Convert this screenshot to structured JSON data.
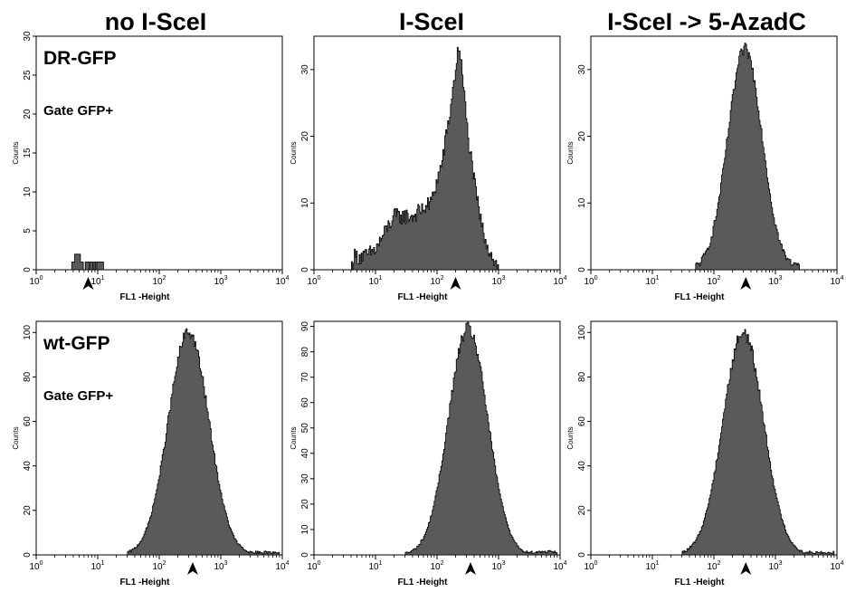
{
  "column_titles": [
    "no I-SceI",
    "I-SceI",
    "I-SceI -> 5-AzadC"
  ],
  "row_labels": [
    "DR-GFP",
    "wt-GFP"
  ],
  "gate_label": "Gate GFP+",
  "colors": {
    "fill": "#5a5a5a",
    "stroke": "#000000",
    "arrow": "#000000"
  },
  "chart_data": [
    {
      "type": "area",
      "row": 0,
      "col": 0,
      "title": "no I-SceI",
      "panel_label": "DR-GFP",
      "gate_label": "Gate GFP+",
      "xlabel": "FL1 -Height",
      "ylabel": "Counts",
      "xscale": "log",
      "xlim": [
        1,
        10000
      ],
      "ylim": [
        0,
        30
      ],
      "xticks": [
        "10^0",
        "10^1",
        "10^2",
        "10^3",
        "10^4"
      ],
      "yticks": [
        0,
        5,
        10,
        15,
        20,
        25,
        30
      ],
      "marker_x": 7,
      "distribution": {
        "kind": "sparse",
        "bins": [
          [
            4,
            1
          ],
          [
            4.5,
            2
          ],
          [
            5,
            2
          ],
          [
            5.5,
            1
          ],
          [
            6.5,
            1
          ],
          [
            7,
            1
          ],
          [
            8,
            1
          ],
          [
            9,
            1
          ],
          [
            10,
            1
          ],
          [
            11,
            1
          ],
          [
            12,
            1
          ]
        ]
      }
    },
    {
      "type": "area",
      "row": 0,
      "col": 1,
      "title": "I-SceI",
      "xlabel": "FL1 -Height",
      "ylabel": "Counts",
      "xscale": "log",
      "xlim": [
        1,
        10000
      ],
      "ylim": [
        0,
        35
      ],
      "xticks": [
        "10^0",
        "10^1",
        "10^2",
        "10^3",
        "10^4"
      ],
      "yticks": [
        0,
        10,
        20,
        30
      ],
      "marker_x": 200,
      "distribution": {
        "kind": "profile",
        "points": [
          [
            4,
            0
          ],
          [
            4.5,
            2
          ],
          [
            7,
            2
          ],
          [
            10,
            3
          ],
          [
            15,
            6
          ],
          [
            20,
            8
          ],
          [
            40,
            8
          ],
          [
            80,
            10
          ],
          [
            120,
            16
          ],
          [
            160,
            23
          ],
          [
            200,
            30
          ],
          [
            230,
            34
          ],
          [
            260,
            29
          ],
          [
            320,
            20
          ],
          [
            420,
            12
          ],
          [
            550,
            6
          ],
          [
            700,
            3
          ],
          [
            900,
            1
          ],
          [
            1000,
            0
          ]
        ]
      }
    },
    {
      "type": "area",
      "row": 0,
      "col": 2,
      "title": "I-SceI -> 5-AzadC",
      "xlabel": "FL1 -Height",
      "ylabel": "Counts",
      "xscale": "log",
      "xlim": [
        1,
        10000
      ],
      "ylim": [
        0,
        35
      ],
      "xticks": [
        "10^0",
        "10^1",
        "10^2",
        "10^3",
        "10^4"
      ],
      "yticks": [
        0,
        10,
        20,
        30
      ],
      "marker_x": 330,
      "distribution": {
        "kind": "lognormal",
        "peak": 33,
        "center": 320,
        "sigma": 0.28,
        "start": 50,
        "end": 2500
      }
    },
    {
      "type": "area",
      "row": 1,
      "col": 0,
      "panel_label": "wt-GFP",
      "gate_label": "Gate GFP+",
      "xlabel": "FL1 -Height",
      "ylabel": "Counts",
      "xscale": "log",
      "xlim": [
        1,
        10000
      ],
      "ylim": [
        0,
        105
      ],
      "xticks": [
        "10^0",
        "10^1",
        "10^2",
        "10^3",
        "10^4"
      ],
      "yticks": [
        0,
        20,
        40,
        60,
        80,
        100
      ],
      "marker_x": 350,
      "distribution": {
        "kind": "lognormal",
        "peak": 100,
        "center": 300,
        "sigma": 0.33,
        "start": 30,
        "end": 9000
      }
    },
    {
      "type": "area",
      "row": 1,
      "col": 1,
      "xlabel": "FL1 -Height",
      "ylabel": "Counts",
      "xscale": "log",
      "xlim": [
        1,
        10000
      ],
      "ylim": [
        0,
        92
      ],
      "xticks": [
        "10^0",
        "10^1",
        "10^2",
        "10^3",
        "10^4"
      ],
      "yticks": [
        0,
        10,
        20,
        30,
        40,
        50,
        60,
        70,
        80,
        90
      ],
      "marker_x": 350,
      "distribution": {
        "kind": "lognormal",
        "peak": 89,
        "center": 320,
        "sigma": 0.32,
        "start": 30,
        "end": 9000
      }
    },
    {
      "type": "area",
      "row": 1,
      "col": 2,
      "xlabel": "FL1 -Height",
      "ylabel": "Counts",
      "xscale": "log",
      "xlim": [
        1,
        10000
      ],
      "ylim": [
        0,
        105
      ],
      "xticks": [
        "10^0",
        "10^1",
        "10^2",
        "10^3",
        "10^4"
      ],
      "yticks": [
        0,
        20,
        40,
        60,
        80,
        100
      ],
      "marker_x": 330,
      "distribution": {
        "kind": "lognormal",
        "peak": 100,
        "center": 300,
        "sigma": 0.33,
        "start": 30,
        "end": 9000
      }
    }
  ]
}
